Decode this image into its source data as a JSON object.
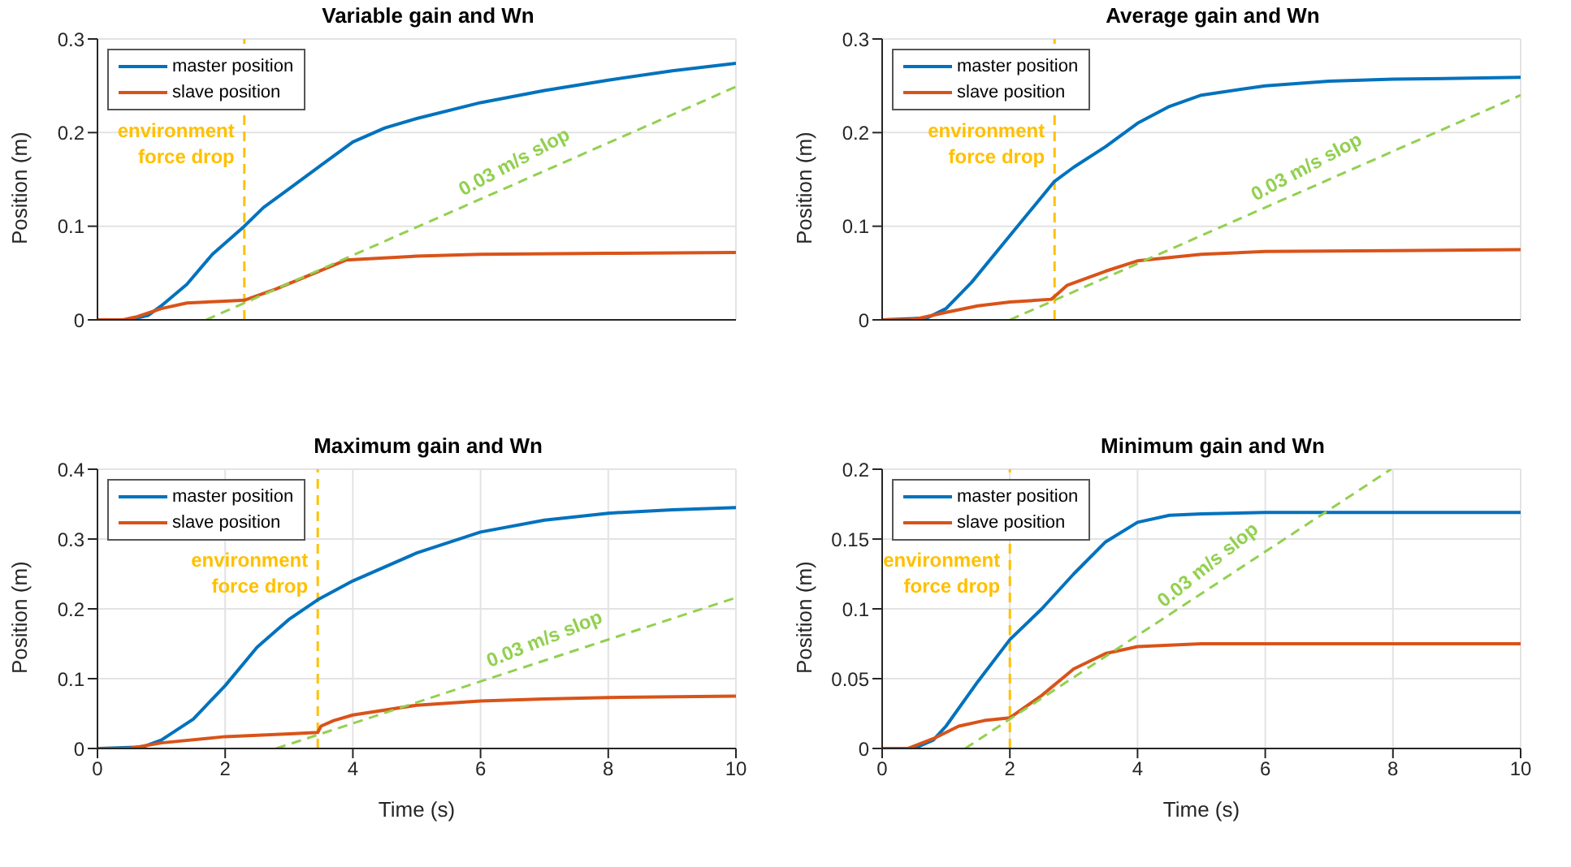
{
  "chart_data": [
    {
      "type": "line",
      "title": "Variable gain and Wn",
      "ylabel": "Position (m)",
      "xlim": [
        0,
        10
      ],
      "xticks": [
        0,
        2,
        4,
        6,
        8,
        10
      ],
      "ylim": [
        0,
        0.3
      ],
      "yticks": [
        0,
        0.1,
        0.2,
        0.3
      ],
      "grid": true,
      "legend": "top left",
      "tick_labels": "y",
      "series": [
        {
          "name": "master position",
          "color": "#0072bd",
          "x": [
            0,
            0.5,
            0.8,
            1,
            1.4,
            1.8,
            2.3,
            2.6,
            3,
            3.5,
            4,
            4.5,
            5,
            6,
            7,
            8,
            9,
            10
          ],
          "values": [
            0,
            0,
            0.005,
            0.015,
            0.038,
            0.07,
            0.1,
            0.12,
            0.14,
            0.165,
            0.19,
            0.205,
            0.215,
            0.232,
            0.245,
            0.256,
            0.266,
            0.274
          ]
        },
        {
          "name": "slave position",
          "color": "#d95319",
          "x": [
            0,
            0.4,
            0.6,
            1,
            1.4,
            2,
            2.3,
            2.8,
            3.4,
            3.9,
            5,
            6,
            8,
            10
          ],
          "values": [
            0,
            0,
            0.003,
            0.012,
            0.018,
            0.02,
            0.021,
            0.033,
            0.05,
            0.064,
            0.068,
            0.07,
            0.071,
            0.072
          ]
        },
        {
          "color": "#92d050",
          "line_style": "dashed",
          "x": [
            1.7,
            10
          ],
          "values": [
            0,
            0.249
          ]
        }
      ],
      "ref_lines": [
        {
          "axis": "x",
          "value": 2.3,
          "label": "environment force drop",
          "color": "#ffc000",
          "line_style": "dashed"
        }
      ],
      "annotations": [
        "0.03 m/s slop"
      ]
    },
    {
      "type": "line",
      "title": "Average gain and Wn",
      "ylabel": "Position (m)",
      "xlim": [
        0,
        10
      ],
      "xticks": [
        0,
        2,
        4,
        6,
        8,
        10
      ],
      "ylim": [
        0,
        0.3
      ],
      "yticks": [
        0,
        0.1,
        0.2,
        0.3
      ],
      "grid": true,
      "legend": "top left",
      "tick_labels": "y",
      "series": [
        {
          "name": "master position",
          "color": "#0072bd",
          "x": [
            0,
            0.7,
            1,
            1.4,
            2,
            2.7,
            3,
            3.5,
            4,
            4.5,
            5,
            6,
            7,
            8,
            10
          ],
          "values": [
            0,
            0.002,
            0.012,
            0.04,
            0.09,
            0.148,
            0.163,
            0.185,
            0.21,
            0.228,
            0.24,
            0.25,
            0.255,
            0.257,
            0.259
          ]
        },
        {
          "name": "slave position",
          "color": "#d95319",
          "x": [
            0,
            0.4,
            0.6,
            1,
            1.5,
            2,
            2.65,
            2.7,
            2.9,
            3.5,
            4,
            5,
            6,
            8,
            10
          ],
          "values": [
            0,
            0,
            0.002,
            0.008,
            0.015,
            0.019,
            0.022,
            0.025,
            0.037,
            0.052,
            0.063,
            0.07,
            0.073,
            0.074,
            0.075
          ]
        },
        {
          "color": "#92d050",
          "line_style": "dashed",
          "x": [
            2,
            10
          ],
          "values": [
            0,
            0.24
          ]
        }
      ],
      "ref_lines": [
        {
          "axis": "x",
          "value": 2.7,
          "label": "environment force drop",
          "color": "#ffc000",
          "line_style": "dashed"
        }
      ],
      "annotations": [
        "0.03 m/s slop"
      ]
    },
    {
      "type": "line",
      "title": "Maximum gain and Wn",
      "xlabel": "Time (s)",
      "ylabel": "Position (m)",
      "xlim": [
        0,
        10
      ],
      "xticks": [
        0,
        2,
        4,
        6,
        8,
        10
      ],
      "ylim": [
        0,
        0.4
      ],
      "yticks": [
        0,
        0.1,
        0.2,
        0.3,
        0.4
      ],
      "grid": true,
      "legend": "top left",
      "series": [
        {
          "name": "master position",
          "color": "#0072bd",
          "x": [
            0,
            0.7,
            1,
            1.5,
            2,
            2.5,
            3,
            3.45,
            4,
            5,
            6,
            7,
            8,
            9,
            10
          ],
          "values": [
            0,
            0.002,
            0.012,
            0.042,
            0.09,
            0.145,
            0.185,
            0.213,
            0.24,
            0.28,
            0.31,
            0.327,
            0.337,
            0.342,
            0.345
          ]
        },
        {
          "name": "slave position",
          "color": "#d95319",
          "x": [
            0,
            0.5,
            1,
            2,
            3,
            3.45,
            3.5,
            3.7,
            4,
            5,
            6,
            7,
            8,
            10
          ],
          "values": [
            0,
            0,
            0.008,
            0.017,
            0.021,
            0.023,
            0.032,
            0.04,
            0.048,
            0.062,
            0.068,
            0.071,
            0.073,
            0.075
          ]
        },
        {
          "color": "#92d050",
          "line_style": "dashed",
          "x": [
            2.8,
            10
          ],
          "values": [
            0,
            0.216
          ]
        }
      ],
      "ref_lines": [
        {
          "axis": "x",
          "value": 3.45,
          "label": "environment force drop",
          "color": "#ffc000",
          "line_style": "dashed"
        }
      ],
      "annotations": [
        "0.03 m/s slop"
      ]
    },
    {
      "type": "line",
      "title": "Minimum gain and Wn",
      "xlabel": "Time (s)",
      "ylabel": "Position (m)",
      "xlim": [
        0,
        10
      ],
      "xticks": [
        0,
        2,
        4,
        6,
        8,
        10
      ],
      "ylim": [
        0,
        0.2
      ],
      "yticks": [
        0,
        0.05,
        0.1,
        0.15,
        0.2
      ],
      "grid": true,
      "legend": "top left",
      "series": [
        {
          "name": "master position",
          "color": "#0072bd",
          "x": [
            0,
            0.5,
            0.8,
            1,
            1.5,
            2,
            2.5,
            3,
            3.5,
            4,
            4.5,
            5,
            6,
            10
          ],
          "values": [
            0,
            0,
            0.006,
            0.016,
            0.048,
            0.078,
            0.1,
            0.125,
            0.148,
            0.162,
            0.167,
            0.168,
            0.169,
            0.169
          ]
        },
        {
          "name": "slave position",
          "color": "#d95319",
          "x": [
            0,
            0.4,
            0.8,
            1.2,
            1.6,
            2,
            2.5,
            3,
            3.5,
            4,
            5,
            10
          ],
          "values": [
            0,
            0,
            0.007,
            0.016,
            0.02,
            0.022,
            0.038,
            0.057,
            0.068,
            0.073,
            0.075,
            0.075
          ]
        },
        {
          "color": "#92d050",
          "line_style": "dashed",
          "x": [
            1.3,
            7.97
          ],
          "values": [
            0,
            0.2
          ]
        }
      ],
      "ref_lines": [
        {
          "axis": "x",
          "value": 2,
          "label": "environment force drop",
          "color": "#ffc000",
          "line_style": "dashed"
        }
      ],
      "annotations": [
        "0.03 m/s slop"
      ]
    }
  ]
}
